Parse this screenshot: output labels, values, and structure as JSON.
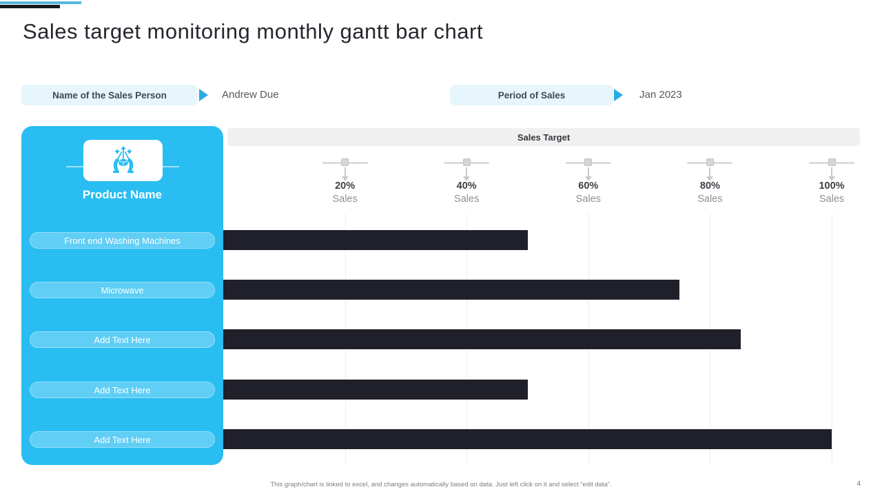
{
  "slide": {
    "title": "Sales target monitoring monthly gantt bar chart",
    "page_number": "4",
    "footer_note": "This graph/chart is linked to excel, and changes automatically based on data. Just left click on it and select “edit data”."
  },
  "fields": {
    "sales_person": {
      "label": "Name of the Sales Person",
      "value": "Andrew Due"
    },
    "period": {
      "label": "Period of Sales",
      "value": "Jan 2023"
    }
  },
  "product_panel": {
    "icon": "hands-presenting-gift-icon",
    "header": "Product Name",
    "items": [
      "Front end Washing Machines",
      "Microwave",
      "Add Text Here",
      "Add Text Here",
      "Add Text Here"
    ]
  },
  "chart_data": {
    "type": "bar",
    "orientation": "horizontal",
    "title": "Sales Target",
    "categories": [
      "Front end Washing Machines",
      "Microwave",
      "Add Text Here",
      "Add Text Here",
      "Add Text Here"
    ],
    "values": [
      50,
      75,
      85,
      50,
      100
    ],
    "xlim": [
      0,
      100
    ],
    "x_ticks": [
      {
        "value": 20,
        "line1": "20%",
        "line2": "Sales"
      },
      {
        "value": 40,
        "line1": "40%",
        "line2": "Sales"
      },
      {
        "value": 60,
        "line1": "60%",
        "line2": "Sales"
      },
      {
        "value": 80,
        "line1": "80%",
        "line2": "Sales"
      },
      {
        "value": 100,
        "line1": "100%",
        "line2": "Sales"
      }
    ],
    "grid": true,
    "legend": "none",
    "bar_color": "#20202a"
  },
  "colors": {
    "accent_blue": "#29bdf2",
    "panel_item_bg": "#4ecbf5",
    "field_pill_bg": "#e7f5fc",
    "bar_dark": "#20202a",
    "chart_header_bg": "#f0f0f0",
    "deco_blue": "#56b6dd",
    "deco_dark": "#151a20"
  }
}
